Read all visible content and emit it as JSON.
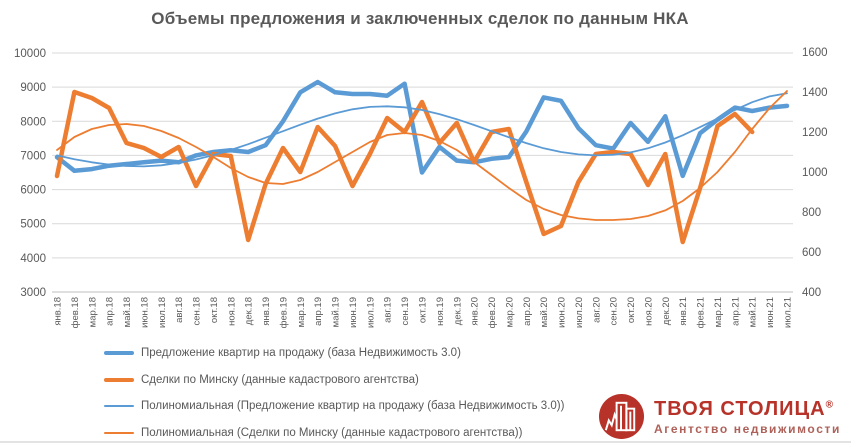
{
  "title": "Объемы предложения и заключенных сделок по данным НКА",
  "colors": {
    "blue": "#5B9BD5",
    "orange": "#ED7D31",
    "grid": "#D9D9D9",
    "axis_line": "#BFBFBF",
    "axis_text": "#595959",
    "title_text": "#595959",
    "logo_red": "#B7332A",
    "logo_subtitle": "#AE6159"
  },
  "logo": {
    "brand": "ТВОЯ СТОЛИЦА",
    "reg_mark": "®",
    "subtitle": "Агентство недвижимости"
  },
  "chart_data": {
    "type": "line",
    "title": "Объемы предложения и заключенных сделок по данным НКА",
    "grid": true,
    "legend_position": "bottom-left",
    "x_labels": [
      "янв.18",
      "фев.18",
      "мар.18",
      "апр.18",
      "май.18",
      "июн.18",
      "июл.18",
      "авг.18",
      "сен.18",
      "окт.18",
      "ноя.18",
      "дек.18",
      "янв.19",
      "фев.19",
      "мар.19",
      "апр.19",
      "май.19",
      "июн.19",
      "июл.19",
      "авг.19",
      "сен.19",
      "окт.19",
      "ноя.19",
      "дек.19",
      "янв.20",
      "фев.20",
      "мар.20",
      "апр.20",
      "май.20",
      "июн.20",
      "июл.20",
      "авг.20",
      "сен.20",
      "окт.20",
      "ноя.20",
      "дек.20",
      "янв.21",
      "фев.21",
      "мар.21",
      "апр.21",
      "май.21",
      "июн.21",
      "июл.21"
    ],
    "left_axis": {
      "min": 3000,
      "max": 10000,
      "ticks": [
        10000,
        9000,
        8000,
        7000,
        6000,
        5000,
        4000,
        3000
      ]
    },
    "right_axis": {
      "min": 400,
      "max": 1600,
      "ticks": [
        1600,
        1400,
        1200,
        1000,
        800,
        600,
        400
      ]
    },
    "series": [
      {
        "name": "Предложение квартир на продажу (база Недвижимость 3.0)",
        "axis": "left",
        "color": "#5B9BD5",
        "width": "thick",
        "values": [
          6950,
          6550,
          6600,
          6700,
          6750,
          6800,
          6850,
          6800,
          7000,
          7100,
          7150,
          7100,
          7300,
          8000,
          8850,
          9150,
          8850,
          8800,
          8800,
          8750,
          9100,
          6500,
          7250,
          6850,
          6800,
          6900,
          6950,
          7700,
          8700,
          8600,
          7800,
          7300,
          7200,
          7950,
          7400,
          8150,
          6400,
          7650,
          8050,
          8400,
          8300,
          8400,
          8450
        ]
      },
      {
        "name": "Сделки по Минску  (данные кадастрового агентства)",
        "axis": "right",
        "color": "#ED7D31",
        "width": "thick",
        "values": [
          980,
          1400,
          1370,
          1320,
          1145,
          1120,
          1075,
          1125,
          930,
          1090,
          1080,
          660,
          940,
          1120,
          1000,
          1225,
          1130,
          930,
          1090,
          1270,
          1200,
          1350,
          1145,
          1245,
          1050,
          1200,
          1215,
          950,
          690,
          730,
          950,
          1090,
          1100,
          1090,
          935,
          1090,
          650,
          920,
          1230,
          1290,
          1200,
          null,
          null
        ]
      },
      {
        "name": "Полиномиальная (Предложение квартир на продажу (база Недвижимость 3.0))",
        "axis": "left",
        "color": "#5B9BD5",
        "width": "thin",
        "values": [
          7000,
          6890,
          6800,
          6730,
          6690,
          6680,
          6710,
          6780,
          6880,
          7010,
          7160,
          7330,
          7520,
          7710,
          7900,
          8080,
          8230,
          8350,
          8420,
          8440,
          8410,
          8330,
          8210,
          8060,
          7890,
          7710,
          7530,
          7360,
          7210,
          7100,
          7030,
          7000,
          7020,
          7090,
          7210,
          7380,
          7590,
          7830,
          8080,
          8330,
          8560,
          8730,
          8820
        ]
      },
      {
        "name": "Полиномиальная (Сделки по Минску (данные кадастрового агентства))",
        "axis": "right",
        "color": "#ED7D31",
        "width": "thin",
        "values": [
          1110,
          1175,
          1215,
          1235,
          1240,
          1230,
          1205,
          1170,
          1125,
          1075,
          1020,
          975,
          945,
          940,
          960,
          1000,
          1050,
          1100,
          1150,
          1185,
          1195,
          1185,
          1155,
          1110,
          1050,
          985,
          920,
          860,
          815,
          785,
          768,
          760,
          760,
          765,
          780,
          808,
          855,
          920,
          1000,
          1100,
          1215,
          1320,
          1405
        ]
      }
    ]
  }
}
